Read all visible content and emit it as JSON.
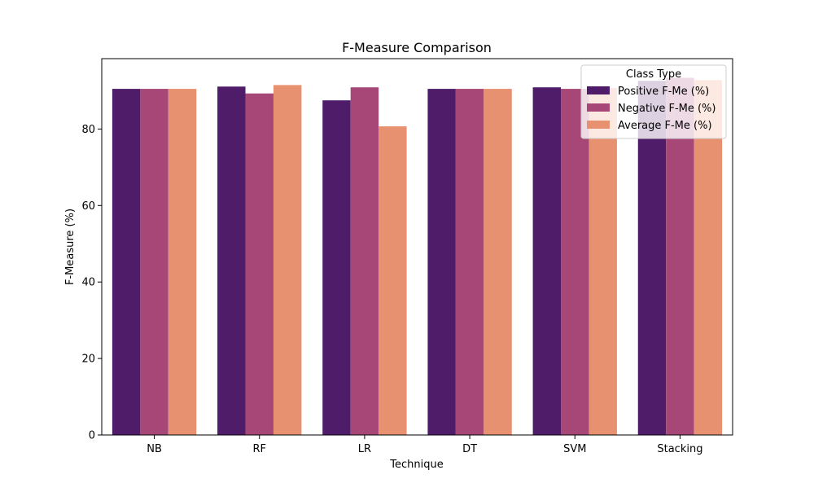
{
  "chart_data": {
    "type": "bar",
    "title": "F-Measure Comparison",
    "xlabel": "Technique",
    "ylabel": "F-Measure (%)",
    "categories": [
      "NB",
      "RF",
      "LR",
      "DT",
      "SVM",
      "Stacking"
    ],
    "ylim": [
      0,
      98.4
    ],
    "yticks": [
      0,
      20,
      40,
      60,
      80
    ],
    "grid": false,
    "legend": {
      "title": "Class Type",
      "placement": "top-right"
    },
    "series": [
      {
        "name": "Positive F-Me (%)",
        "color": "#4f1c6a",
        "values": [
          90.5,
          91.1,
          87.5,
          90.5,
          90.9,
          92.6
        ]
      },
      {
        "name": "Negative F-Me (%)",
        "color": "#a64778",
        "values": [
          90.5,
          89.3,
          90.9,
          90.5,
          90.5,
          93.4
        ]
      },
      {
        "name": "Average F-Me (%)",
        "color": "#e89171",
        "values": [
          90.5,
          91.5,
          80.7,
          90.5,
          90.7,
          92.8
        ]
      }
    ]
  }
}
